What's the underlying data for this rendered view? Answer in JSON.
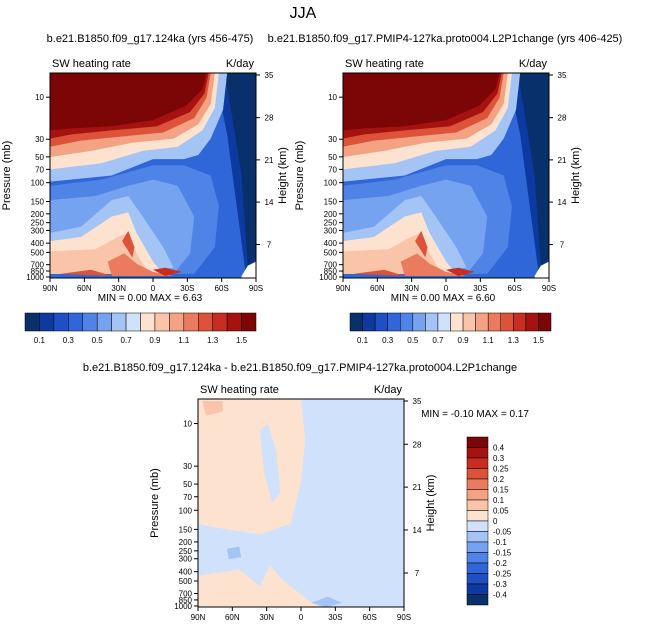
{
  "page": {
    "title": "JJA"
  },
  "palettes": {
    "abs": [
      "#08306b",
      "#0d3aa0",
      "#1f4fc4",
      "#2f66d8",
      "#4f84e6",
      "#76a3ef",
      "#a3c4f5",
      "#d0e2fb",
      "#fde3cf",
      "#f9c4a8",
      "#f3a283",
      "#eb7b5f",
      "#dc5339",
      "#c72d20",
      "#a5120f",
      "#7c0606"
    ],
    "diff": [
      "#7c0606",
      "#a5120f",
      "#c72d20",
      "#dc5339",
      "#eb7b5f",
      "#f3a283",
      "#f9c4a8",
      "#fde3cf",
      "#d0e2fb",
      "#a3c4f5",
      "#76a3ef",
      "#4f84e6",
      "#2f66d8",
      "#1f4fc4",
      "#0d3aa0",
      "#08306b"
    ]
  },
  "chart_data": [
    {
      "type": "heatmap",
      "title": "b.e21.B1850.f09_g17.124ka (yrs 456-475)",
      "left_label": "SW heating rate",
      "right_label": "K/day",
      "ylabel": "Pressure (mb)",
      "ylabel_right": "Height (km)",
      "x_ticks": [
        "90N",
        "60N",
        "30N",
        "0",
        "30S",
        "60S",
        "90S"
      ],
      "y_ticks": [
        "10",
        "30",
        "50",
        "70",
        "100",
        "150",
        "200",
        "250",
        "300",
        "400",
        "500",
        "700",
        "850",
        "1000"
      ],
      "y_right_ticks": [
        "35",
        "28",
        "21",
        "14",
        "7"
      ],
      "stats": {
        "min_label": "MIN =",
        "min": "0.00",
        "max_label": "MAX =",
        "max": "6.63"
      },
      "colorbar": {
        "orientation": "horizontal",
        "labels": [
          "0.1",
          "0.3",
          "0.5",
          "0.7",
          "0.9",
          "1.1",
          "1.3",
          "1.5"
        ]
      }
    },
    {
      "type": "heatmap",
      "title": "b.e21.B1850.f09_g17.PMIP4-127ka.proto004.L2P1change (yrs 406-425)",
      "left_label": "SW heating rate",
      "right_label": "K/day",
      "ylabel": "Pressure (mb)",
      "ylabel_right": "Height (km)",
      "x_ticks": [
        "90N",
        "60N",
        "30N",
        "0",
        "30S",
        "60S",
        "90S"
      ],
      "y_ticks": [
        "10",
        "30",
        "50",
        "70",
        "100",
        "150",
        "200",
        "250",
        "300",
        "400",
        "500",
        "700",
        "850",
        "1000"
      ],
      "y_right_ticks": [
        "35",
        "28",
        "21",
        "14",
        "7"
      ],
      "stats": {
        "min_label": "MIN =",
        "min": "0.00",
        "max_label": "MAX =",
        "max": "6.60"
      },
      "colorbar": {
        "orientation": "horizontal",
        "labels": [
          "0.1",
          "0.3",
          "0.5",
          "0.7",
          "0.9",
          "1.1",
          "1.3",
          "1.5"
        ]
      }
    },
    {
      "type": "heatmap",
      "title": "b.e21.B1850.f09_g17.124ka - b.e21.B1850.f09_g17.PMIP4-127ka.proto004.L2P1change",
      "left_label": "SW heating rate",
      "right_label": "K/day",
      "ylabel": "Pressure (mb)",
      "ylabel_right": "Height (km)",
      "x_ticks": [
        "90N",
        "60N",
        "30N",
        "0",
        "30S",
        "60S",
        "90S"
      ],
      "y_ticks": [
        "10",
        "30",
        "50",
        "70",
        "100",
        "150",
        "200",
        "250",
        "300",
        "400",
        "500",
        "700",
        "850",
        "1000"
      ],
      "y_right_ticks": [
        "35",
        "28",
        "21",
        "14",
        "7"
      ],
      "stats": {
        "min_label": "MIN =",
        "min": "-0.10",
        "max_label": "MAX =",
        "max": "0.17"
      },
      "colorbar": {
        "orientation": "vertical",
        "labels": [
          "0.4",
          "0.3",
          "0.25",
          "0.2",
          "0.15",
          "0.1",
          "0.05",
          "0",
          "-0.05",
          "-0.1",
          "-0.15",
          "-0.2",
          "-0.25",
          "-0.3",
          "-0.4"
        ]
      }
    }
  ]
}
